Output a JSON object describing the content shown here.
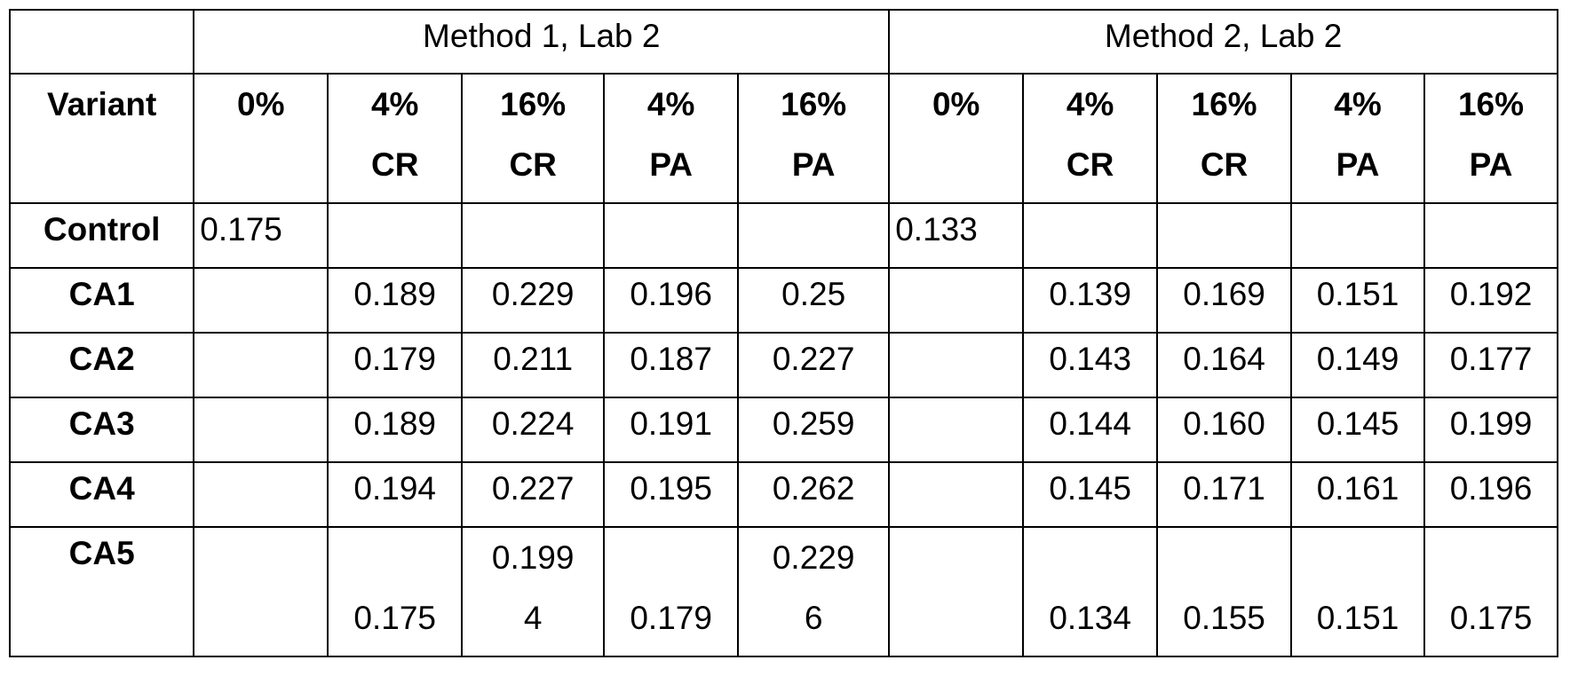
{
  "table": {
    "groups": [
      "Method 1, Lab 2",
      "Method 2, Lab 2"
    ],
    "variant_header": "Variant",
    "columns": [
      {
        "line1": "0%",
        "line2": ""
      },
      {
        "line1": "4%",
        "line2": "CR"
      },
      {
        "line1": "16%",
        "line2": "CR"
      },
      {
        "line1": "4%",
        "line2": "PA"
      },
      {
        "line1": "16%",
        "line2": "PA"
      },
      {
        "line1": "0%",
        "line2": ""
      },
      {
        "line1": "4%",
        "line2": "CR"
      },
      {
        "line1": "16%",
        "line2": "CR"
      },
      {
        "line1": "4%",
        "line2": "PA"
      },
      {
        "line1": "16%",
        "line2": "PA"
      }
    ],
    "rows": [
      {
        "variant": "Control",
        "values": [
          "0.175",
          "",
          "",
          "",
          "",
          "0.133",
          "",
          "",
          "",
          ""
        ]
      },
      {
        "variant": "CA1",
        "values": [
          "",
          "0.189",
          "0.229",
          "0.196",
          "0.25",
          "",
          "0.139",
          "0.169",
          "0.151",
          "0.192"
        ]
      },
      {
        "variant": "CA2",
        "values": [
          "",
          "0.179",
          "0.211",
          "0.187",
          "0.227",
          "",
          "0.143",
          "0.164",
          "0.149",
          "0.177"
        ]
      },
      {
        "variant": "CA3",
        "values": [
          "",
          "0.189",
          "0.224",
          "0.191",
          "0.259",
          "",
          "0.144",
          "0.160",
          "0.145",
          "0.199"
        ]
      },
      {
        "variant": "CA4",
        "values": [
          "",
          "0.194",
          "0.227",
          "0.195",
          "0.262",
          "",
          "0.145",
          "0.171",
          "0.161",
          "0.196"
        ]
      }
    ],
    "last_row": {
      "variant": "CA5",
      "cells": [
        {
          "line1": "",
          "line2": ""
        },
        {
          "line1": "",
          "line2": "0.175"
        },
        {
          "line1": "0.199",
          "line2": "4"
        },
        {
          "line1": "",
          "line2": "0.179"
        },
        {
          "line1": "0.229",
          "line2": "6"
        },
        {
          "line1": "",
          "line2": ""
        },
        {
          "line1": "",
          "line2": "0.134"
        },
        {
          "line1": "",
          "line2": "0.155"
        },
        {
          "line1": "",
          "line2": "0.151"
        },
        {
          "line1": "",
          "line2": "0.175"
        }
      ]
    }
  }
}
